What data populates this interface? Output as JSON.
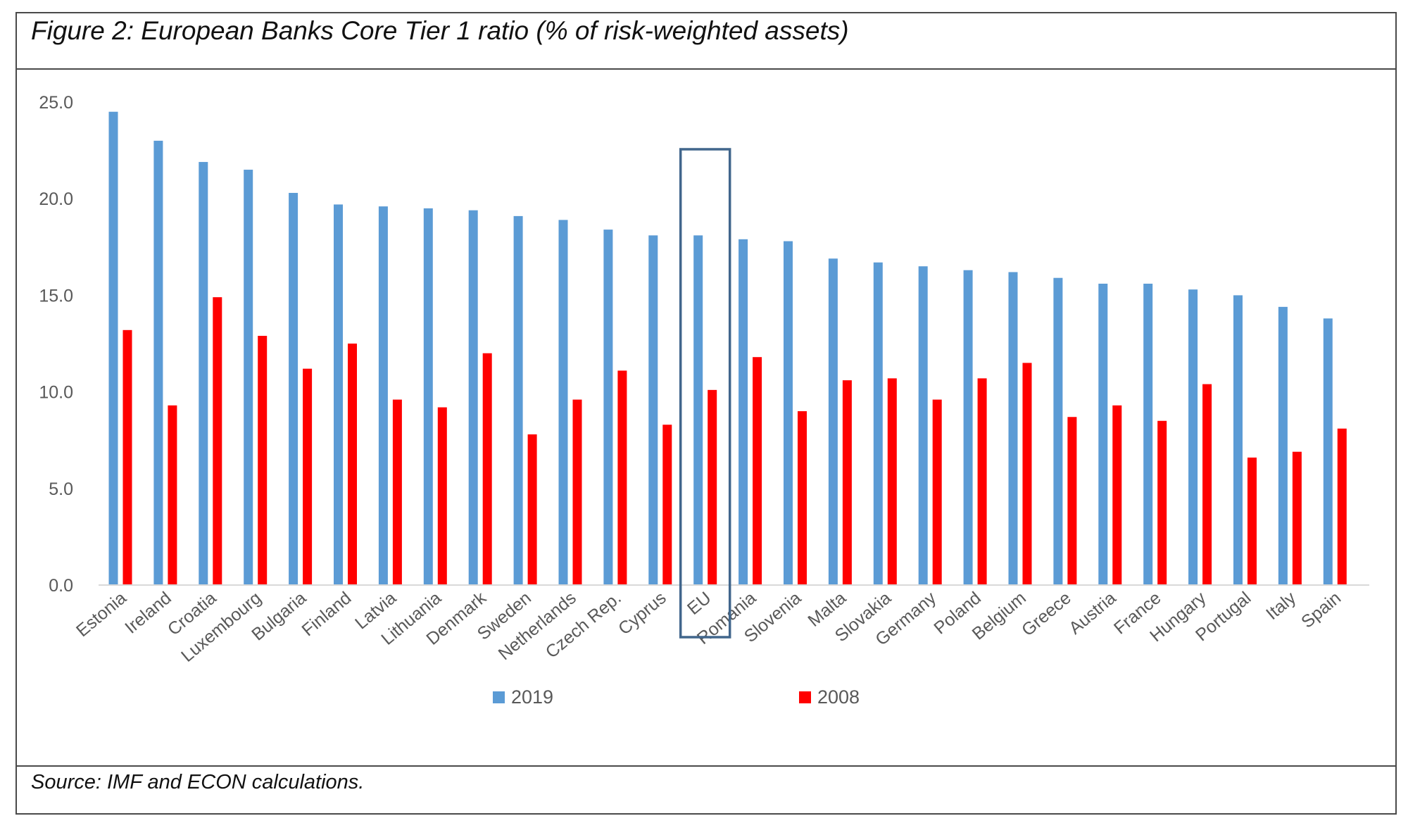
{
  "figure": {
    "title": "Figure 2: European Banks Core Tier 1 ratio (% of risk-weighted assets)",
    "source": "Source: IMF and ECON calculations."
  },
  "chart_data": {
    "type": "bar",
    "categories": [
      "Estonia",
      "Ireland",
      "Croatia",
      "Luxembourg",
      "Bulgaria",
      "Finland",
      "Latvia",
      "Lithuania",
      "Denmark",
      "Sweden",
      "Netherlands",
      "Czech Rep.",
      "Cyprus",
      "EU",
      "Romania",
      "Slovenia",
      "Malta",
      "Slovakia",
      "Germany",
      "Poland",
      "Belgium",
      "Greece",
      "Austria",
      "France",
      "Hungary",
      "Portugal",
      "Italy",
      "Spain"
    ],
    "series": [
      {
        "name": "2019",
        "color": "#5b9bd5",
        "values": [
          24.5,
          23.0,
          21.9,
          21.5,
          20.3,
          19.7,
          19.6,
          19.5,
          19.4,
          19.1,
          18.9,
          18.4,
          18.1,
          18.1,
          17.9,
          17.8,
          16.9,
          16.7,
          16.5,
          16.3,
          16.2,
          15.9,
          15.6,
          15.6,
          15.3,
          15.0,
          14.4,
          13.8
        ]
      },
      {
        "name": "2008",
        "color": "#ff0000",
        "values": [
          13.2,
          9.3,
          14.9,
          12.9,
          11.2,
          12.5,
          9.6,
          9.2,
          12.0,
          7.8,
          9.6,
          11.1,
          8.3,
          10.1,
          11.8,
          9.0,
          10.6,
          10.7,
          9.6,
          10.7,
          11.5,
          8.7,
          9.3,
          8.5,
          10.4,
          6.6,
          6.9,
          8.1
        ]
      }
    ],
    "yticks": [
      "0.0",
      "5.0",
      "10.0",
      "15.0",
      "20.0",
      "25.0"
    ],
    "ylim": [
      0,
      25
    ],
    "highlight_category": "EU",
    "legend_position": "bottom",
    "grid": false,
    "xlabel": "",
    "ylabel": ""
  }
}
